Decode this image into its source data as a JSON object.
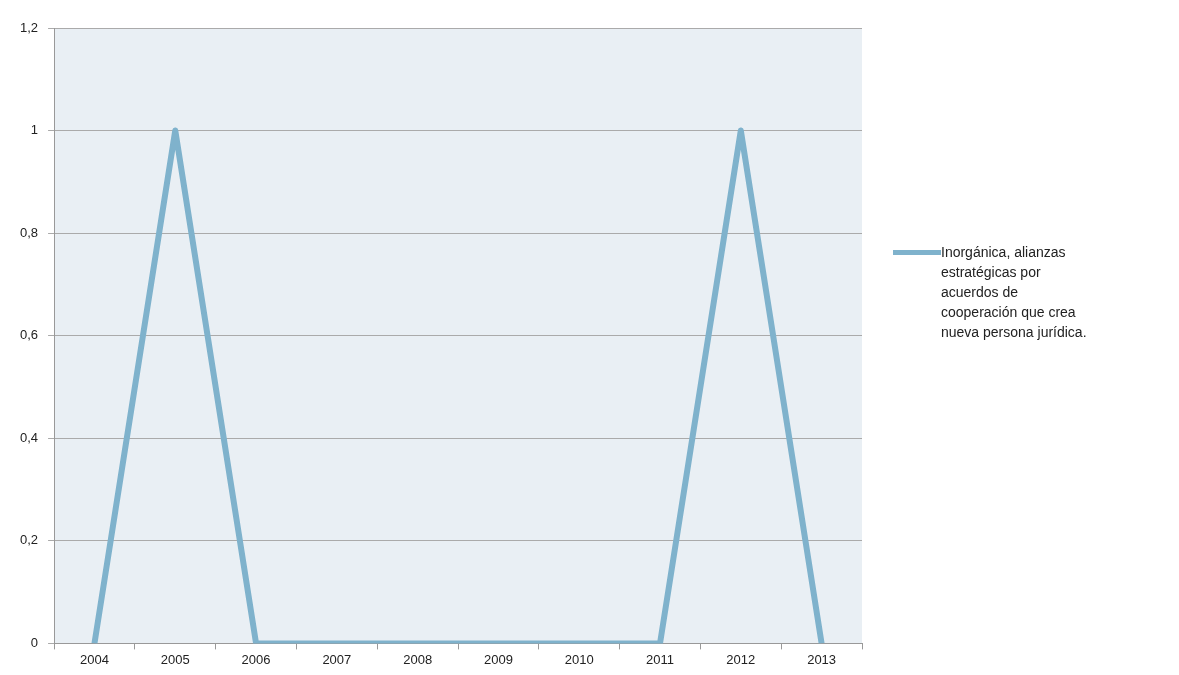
{
  "chart_data": {
    "type": "line",
    "categories": [
      "2004",
      "2005",
      "2006",
      "2007",
      "2008",
      "2009",
      "2010",
      "2011",
      "2012",
      "2013"
    ],
    "series": [
      {
        "name": "Inorgánica, alianzas estratégicas por acuerdos de cooperación que crea nueva persona jurídica.",
        "color": "#7fb2cc",
        "values": [
          0,
          1,
          0,
          0,
          0,
          0,
          0,
          0,
          1,
          0
        ]
      }
    ],
    "ylim": [
      0,
      1.2
    ],
    "yticks": [
      0,
      {
        "value": 0.2,
        "label": "0,2"
      },
      {
        "value": 0.4,
        "label": "0,4"
      },
      {
        "value": 0.6,
        "label": "0,6"
      },
      {
        "value": 0.8,
        "label": "0,8"
      },
      1,
      {
        "value": 1.2,
        "label": "1,2"
      }
    ],
    "grid": "y",
    "legend": "right",
    "marker": "none",
    "line_style": "solid"
  }
}
